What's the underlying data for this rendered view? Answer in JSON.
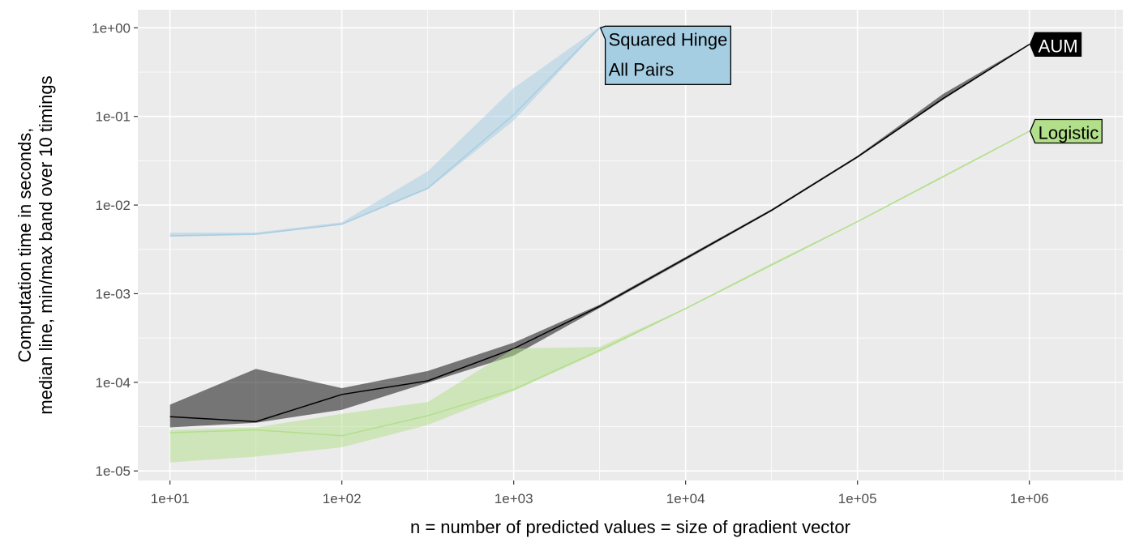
{
  "chart_data": {
    "type": "line",
    "xlabel": "n = number of predicted values = size of gradient vector",
    "ylabel": [
      "Computation time in seconds,",
      "median line, min/max band over 10 timings"
    ],
    "x_scale": "log10",
    "y_scale": "log10",
    "xlim": [
      6.5,
      3500000
    ],
    "ylim": [
      7.8e-06,
      1.6
    ],
    "x_ticks": [
      10,
      100,
      1000,
      10000,
      100000,
      1000000
    ],
    "x_tick_labels": [
      "1e+01",
      "1e+02",
      "1e+03",
      "1e+04",
      "1e+05",
      "1e+06"
    ],
    "y_ticks": [
      1e-05,
      0.0001,
      0.001,
      0.01,
      0.1,
      1
    ],
    "y_tick_labels": [
      "1e-05",
      "1e-04",
      "1e-03",
      "1e-02",
      "1e-01",
      "1e+00"
    ],
    "grid": true,
    "legend": "none",
    "series": [
      {
        "name": "Squared Hinge\nAll Pairs",
        "label_lines": [
          "Squared Hinge",
          "All Pairs"
        ],
        "color": "#a6cee3",
        "x": [
          10,
          31.6,
          100,
          316,
          1000,
          3160
        ],
        "median": [
          0.0045,
          0.0047,
          0.0061,
          0.0155,
          0.105,
          1.0
        ],
        "min": [
          0.0044,
          0.0046,
          0.006,
          0.015,
          0.09,
          0.98
        ],
        "max": [
          0.0049,
          0.0049,
          0.0064,
          0.024,
          0.21,
          1.02
        ]
      },
      {
        "name": "AUM",
        "label_lines": [
          "AUM"
        ],
        "color": "#000000",
        "x": [
          10,
          31.6,
          100,
          316,
          1000,
          3160,
          10000,
          31600,
          100000,
          316000,
          1000000
        ],
        "median": [
          4.1e-05,
          3.6e-05,
          7.3e-05,
          0.000104,
          0.00024,
          0.00072,
          0.0025,
          0.0087,
          0.035,
          0.16,
          0.65
        ],
        "min": [
          3.1e-05,
          3.5e-05,
          4.9e-05,
          9.9e-05,
          0.0002,
          0.00069,
          0.0024,
          0.0085,
          0.034,
          0.155,
          0.64
        ],
        "max": [
          5.6e-05,
          0.000142,
          8.6e-05,
          0.000134,
          0.00028,
          0.00075,
          0.0026,
          0.009,
          0.036,
          0.18,
          0.66
        ]
      },
      {
        "name": "Logistic",
        "label_lines": [
          "Logistic"
        ],
        "color": "#b2df8a",
        "x": [
          10,
          31.6,
          100,
          316,
          1000,
          3160,
          10000,
          31600,
          100000,
          316000,
          1000000
        ],
        "median": [
          2.7e-05,
          2.9e-05,
          2.5e-05,
          4.2e-05,
          8.3e-05,
          0.00023,
          0.00068,
          0.0021,
          0.0065,
          0.021,
          0.068
        ],
        "min": [
          1.25e-05,
          1.45e-05,
          1.85e-05,
          3.3e-05,
          8e-05,
          0.00022,
          0.00067,
          0.0021,
          0.0064,
          0.0205,
          0.067
        ],
        "max": [
          2.9e-05,
          3.1e-05,
          4.4e-05,
          6e-05,
          0.00024,
          0.00025,
          0.00069,
          0.0022,
          0.0066,
          0.0215,
          0.069
        ]
      }
    ]
  }
}
